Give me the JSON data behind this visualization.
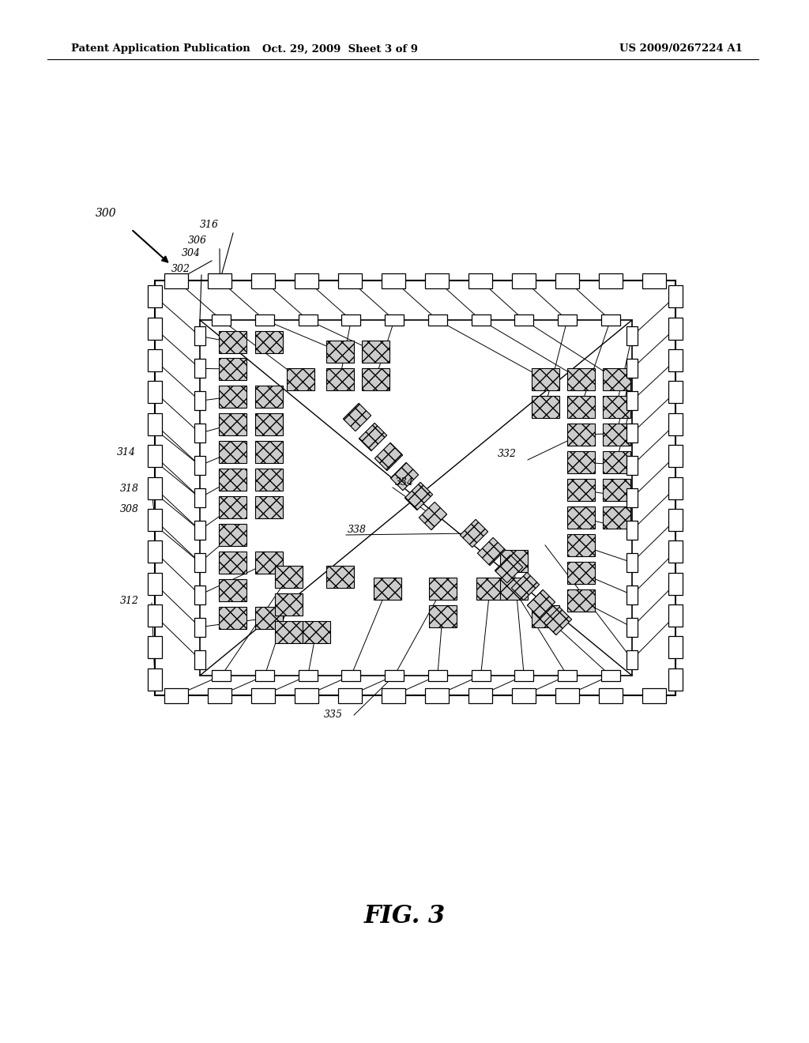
{
  "bg_color": "#ffffff",
  "line_color": "#000000",
  "header_left": "Patent Application Publication",
  "header_center": "Oct. 29, 2009  Sheet 3 of 9",
  "header_right": "US 2009/0267224 A1",
  "fig_label": "FIG. 3",
  "ref_300": "300",
  "ref_302": "302",
  "ref_304": "304",
  "ref_306": "306",
  "ref_308": "308",
  "ref_312": "312",
  "ref_314": "314",
  "ref_316": "316",
  "ref_318": "318",
  "ref_332": "332",
  "ref_334": "334",
  "ref_335": "335",
  "ref_338": "338"
}
